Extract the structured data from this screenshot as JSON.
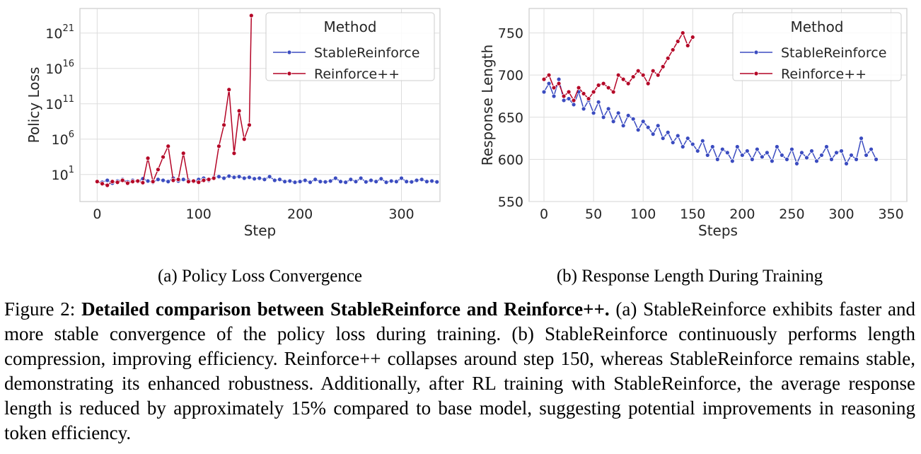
{
  "chart_data": [
    {
      "type": "line",
      "caption": "(a) Policy Loss Convergence",
      "xlabel": "Step",
      "ylabel": "Policy Loss",
      "log_y": true,
      "grid": true,
      "xlim": [
        -17,
        338
      ],
      "xticks": [
        0,
        100,
        200,
        300
      ],
      "ylim": [
        0.0015,
        3e+24
      ],
      "yticks": [
        {
          "value": 10,
          "label": "10",
          "exponent": "1"
        },
        {
          "value": 1000000.0,
          "label": "10",
          "exponent": "6"
        },
        {
          "value": 100000000000.0,
          "label": "10",
          "exponent": "11"
        },
        {
          "value": 1e+16,
          "label": "10",
          "exponent": "16"
        },
        {
          "value": 1e+21,
          "label": "10",
          "exponent": "21"
        }
      ],
      "legend_title": "Method",
      "legend_loc": "upper right",
      "series": [
        {
          "name": "StableReinforce",
          "color": "#3b4cc0",
          "x": [
            0,
            5,
            10,
            15,
            20,
            25,
            30,
            35,
            40,
            45,
            50,
            55,
            60,
            65,
            70,
            75,
            80,
            85,
            90,
            95,
            100,
            105,
            110,
            115,
            120,
            125,
            130,
            135,
            140,
            145,
            150,
            155,
            160,
            165,
            170,
            175,
            180,
            185,
            190,
            195,
            200,
            205,
            210,
            215,
            220,
            225,
            230,
            235,
            240,
            245,
            250,
            255,
            260,
            265,
            270,
            275,
            280,
            285,
            290,
            295,
            300,
            305,
            310,
            315,
            320,
            325,
            330,
            335
          ],
          "values": [
            1,
            0.8,
            1.5,
            0.6,
            1.2,
            2,
            0.9,
            1.5,
            1,
            2.5,
            1.2,
            0.8,
            2,
            1.5,
            1,
            3,
            1.2,
            2,
            1.5,
            1,
            2,
            3,
            1.5,
            4,
            5,
            3,
            6,
            4,
            5,
            3,
            4,
            2.5,
            3,
            2,
            5,
            1.5,
            2,
            1,
            1.2,
            0.8,
            1,
            1.5,
            0.8,
            2,
            1,
            0.9,
            1.2,
            3,
            1,
            0.8,
            2,
            1,
            3,
            0.9,
            1.5,
            1,
            2.5,
            0.8,
            1.2,
            1,
            3,
            1,
            0.9,
            1.5,
            2,
            1,
            1.2,
            0.9
          ]
        },
        {
          "name": "Reinforce++",
          "color": "#b40426",
          "x": [
            0,
            5,
            10,
            15,
            20,
            25,
            30,
            35,
            40,
            45,
            50,
            55,
            60,
            65,
            70,
            75,
            80,
            85,
            90,
            95,
            100,
            105,
            110,
            115,
            120,
            125,
            130,
            135,
            140,
            145,
            150,
            152
          ],
          "values": [
            1,
            0.5,
            0.3,
            1,
            0.8,
            1.5,
            0.6,
            1,
            1.2,
            0.7,
            2000,
            1,
            50,
            3000,
            100000,
            1.5,
            2,
            10000,
            1,
            1.2,
            0.8,
            1.5,
            2,
            3,
            100000,
            100000000.0,
            10000000000000.0,
            10000,
            10000000000.0,
            1000000.0,
            100000000.0,
            3e+23
          ]
        }
      ]
    },
    {
      "type": "line",
      "caption": "(b) Response Length During Training",
      "xlabel": "Steps",
      "ylabel": "Response Length",
      "log_y": false,
      "grid": true,
      "xlim": [
        -15,
        366
      ],
      "xticks": [
        0,
        50,
        100,
        150,
        200,
        250,
        300,
        350
      ],
      "ylim": [
        550,
        779
      ],
      "yticks": [
        550,
        600,
        650,
        700,
        750
      ],
      "legend_title": "Method",
      "legend_loc": "upper right",
      "series": [
        {
          "name": "StableReinforce",
          "color": "#3b4cc0",
          "x": [
            0,
            5,
            10,
            15,
            20,
            25,
            30,
            35,
            40,
            45,
            50,
            55,
            60,
            65,
            70,
            75,
            80,
            85,
            90,
            95,
            100,
            105,
            110,
            115,
            120,
            125,
            130,
            135,
            140,
            145,
            150,
            155,
            160,
            165,
            170,
            175,
            180,
            185,
            190,
            195,
            200,
            205,
            210,
            215,
            220,
            225,
            230,
            235,
            240,
            245,
            250,
            255,
            260,
            265,
            270,
            275,
            280,
            285,
            290,
            295,
            300,
            305,
            310,
            315,
            320,
            325,
            330,
            335
          ],
          "values": [
            680,
            690,
            675,
            695,
            670,
            672,
            665,
            680,
            660,
            670,
            655,
            668,
            650,
            660,
            645,
            655,
            640,
            652,
            648,
            635,
            645,
            638,
            630,
            640,
            625,
            632,
            620,
            628,
            615,
            625,
            618,
            610,
            622,
            605,
            615,
            600,
            612,
            608,
            598,
            615,
            605,
            610,
            600,
            612,
            603,
            608,
            598,
            615,
            605,
            600,
            612,
            595,
            608,
            602,
            610,
            598,
            605,
            615,
            600,
            608,
            610,
            595,
            605,
            600,
            625,
            605,
            612,
            600
          ]
        },
        {
          "name": "Reinforce++",
          "color": "#b40426",
          "x": [
            0,
            5,
            10,
            15,
            20,
            25,
            30,
            35,
            40,
            45,
            50,
            55,
            60,
            65,
            70,
            75,
            80,
            85,
            90,
            95,
            100,
            105,
            110,
            115,
            120,
            125,
            130,
            135,
            140,
            145,
            150
          ],
          "values": [
            695,
            700,
            685,
            690,
            675,
            680,
            670,
            685,
            678,
            672,
            680,
            688,
            690,
            685,
            680,
            700,
            695,
            690,
            698,
            705,
            700,
            690,
            705,
            700,
            710,
            720,
            730,
            740,
            750,
            735,
            745
          ]
        }
      ]
    }
  ],
  "caption": {
    "label": "Figure 2:",
    "title": "Detailed comparison between StableReinforce and Reinforce++.",
    "text": "(a) StableReinforce exhibits faster and more stable convergence of the policy loss during training. (b) StableReinforce continuously performs length compression, improving efficiency. Reinforce++ collapses around step 150, whereas StableReinforce remains stable, demonstrating its enhanced robustness. Additionally, after RL training with StableReinforce, the average response length is reduced by approximately 15% compared to base model, suggesting potential improvements in reasoning token efficiency."
  }
}
